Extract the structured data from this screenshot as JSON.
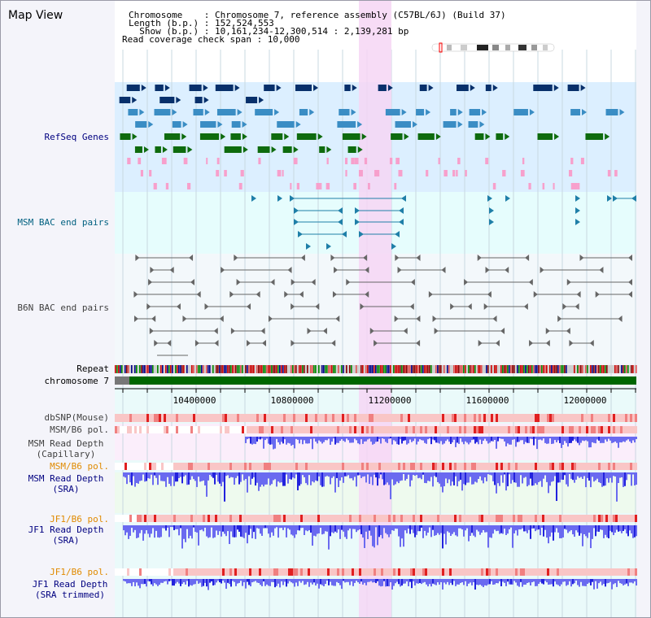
{
  "title": "Map View",
  "info": {
    "line1": "Chromosome    : Chromosome 7, reference assembly (C57BL/6J) (Build 37)",
    "line2": "Length (b.p.) : 152,524,553",
    "line3": "  Show (b.p.) : 10,161,234-12,300,514 : 2,139,281 bp",
    "line4": "Read coverage check span : 10,000"
  },
  "labels": {
    "refseq": "RefSeq Genes",
    "msm_bac": "MSM BAC end pairs",
    "b6n_bac": "B6N BAC end pairs",
    "repeat": "Repeat",
    "chromosome": "chromosome 7",
    "dbsnp": "dbSNP(Mouse)",
    "msm_pol1": "MSM/B6 pol.",
    "msm_cap_l1": "MSM Read Depth",
    "msm_cap_l2": "(Capillary)",
    "msm_pol2": "MSM/B6 pol.",
    "msm_sra_l1": "MSM Read Depth",
    "msm_sra_l2": "(SRA)",
    "jf1_pol1": "JF1/B6 pol.",
    "jf1_sra_l1": "JF1 Read Depth",
    "jf1_sra_l2": "(SRA)",
    "jf1_pol2": "JF1/B6 pol.",
    "jf1_trim_l1": "JF1 Read Depth",
    "jf1_trim_l2": "(SRA trimmed)"
  },
  "axis": {
    "ticks": [
      "10400000",
      "10800000",
      "11200000",
      "11600000",
      "12000000"
    ]
  },
  "colors": {
    "refseq_bg": "#dcefff",
    "bac_bg": "#e6fdfd",
    "highlight": "#f6d6f4",
    "gene_navy": "#08306b",
    "gene_blue": "#3a8dc4",
    "gene_green": "#0e6b0e",
    "gene_pink": "#f7a0cc",
    "bac_msm": "#1f7fa8",
    "bac_b6n": "#666666",
    "snp_red": "#e02020",
    "depth_blue": "#4545e6",
    "label_navy": "#000080",
    "label_teal": "#006080",
    "label_orange": "#e08a00",
    "chromosome_green": "#006600"
  }
}
